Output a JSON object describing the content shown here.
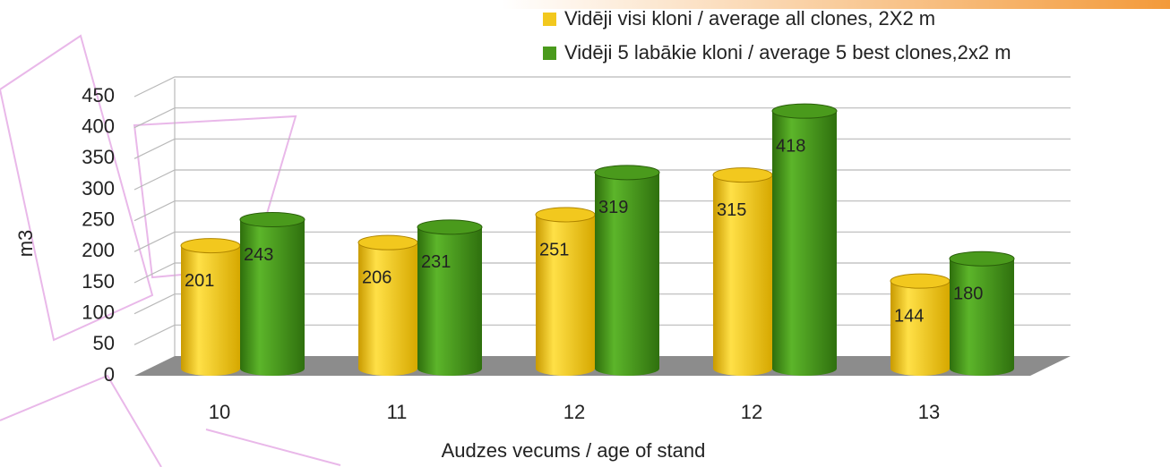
{
  "chart_data": {
    "type": "bar3d",
    "categories": [
      "10",
      "11",
      "12",
      "12",
      "13"
    ],
    "series": [
      {
        "name": "Vidēji visi kloni / average all clones, 2X2 m",
        "color": "#f2c81e",
        "values": [
          201,
          206,
          251,
          315,
          144
        ]
      },
      {
        "name": "Vidēji 5 labākie kloni / average 5 best clones,2x2 m",
        "color": "#4a9a1c",
        "values": [
          243,
          231,
          319,
          418,
          180
        ]
      }
    ],
    "ylabel": "m3",
    "xlabel": "Audzes vecums / age of stand",
    "ylim": [
      0,
      450
    ],
    "yticks": [
      0,
      50,
      100,
      150,
      200,
      250,
      300,
      350,
      400,
      450
    ],
    "grid": true,
    "legend": "top-right"
  }
}
